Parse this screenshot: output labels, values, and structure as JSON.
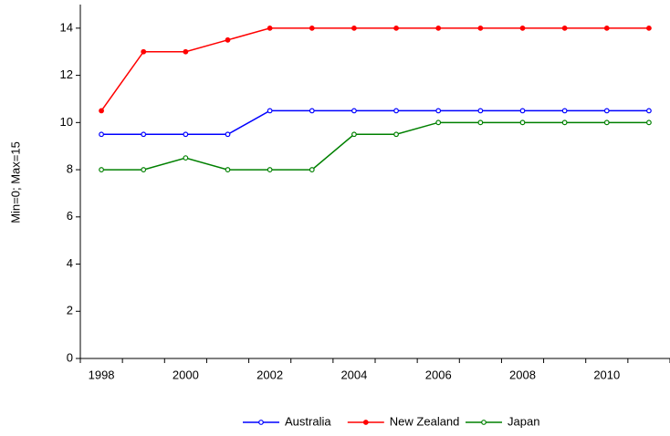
{
  "chart_data": {
    "type": "line",
    "y_label": "Min=0; Max=15",
    "categories": [
      "1998",
      null,
      "2000",
      null,
      "2002",
      null,
      "2004",
      null,
      "2006",
      null,
      "2008",
      null,
      "2010",
      null
    ],
    "series": [
      {
        "name": "Australia",
        "color": "#0000ff",
        "marker": "open",
        "values": [
          9.5,
          9.5,
          9.5,
          9.5,
          10.5,
          10.5,
          10.5,
          10.5,
          10.5,
          10.5,
          10.5,
          10.5,
          10.5,
          10.5
        ]
      },
      {
        "name": "New Zealand",
        "color": "#ff0000",
        "marker": "filled",
        "values": [
          10.5,
          13,
          13,
          13.5,
          14,
          14,
          14,
          14,
          14,
          14,
          14,
          14,
          14,
          14
        ]
      },
      {
        "name": "Japan",
        "color": "#008000",
        "marker": "open",
        "values": [
          8,
          8,
          8.5,
          8,
          8,
          8,
          9.5,
          9.5,
          10,
          10,
          10,
          10,
          10,
          10
        ]
      }
    ],
    "ylim": [
      0,
      15
    ],
    "yticks": [
      0,
      2,
      4,
      6,
      8,
      10,
      12,
      14
    ],
    "legend": "bottom"
  }
}
